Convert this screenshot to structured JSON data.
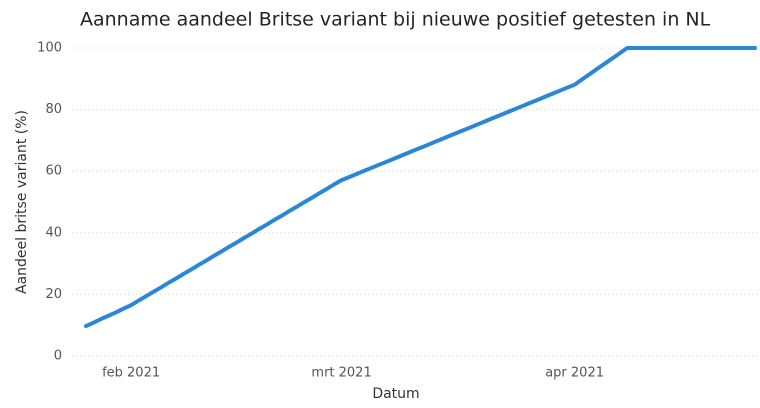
{
  "chart_data": {
    "type": "line",
    "title": "Aanname aandeel Britse variant bij nieuwe positief getesten in NL",
    "x_label": "Datum",
    "y_label": "Aandeel britse variant (%)",
    "series": [
      {
        "name": "Aandeel britse variant",
        "color": "#2a87d8",
        "values": [
          9.7,
          10.8,
          12.0,
          13.1,
          14.2,
          15.4,
          16.5,
          18.0,
          19.4,
          20.9,
          22.3,
          23.8,
          25.2,
          26.7,
          28.1,
          29.6,
          31.0,
          32.5,
          33.9,
          35.4,
          36.8,
          38.3,
          39.7,
          41.2,
          42.6,
          44.1,
          45.5,
          47.0,
          48.4,
          49.9,
          51.3,
          52.8,
          54.2,
          55.7,
          57.1,
          58.1,
          59.1,
          60.1,
          61.1,
          62.1,
          63.1,
          64.1,
          65.1,
          66.1,
          67.1,
          68.1,
          69.1,
          70.1,
          71.1,
          72.1,
          73.1,
          74.1,
          75.1,
          76.1,
          77.1,
          78.1,
          79.1,
          80.1,
          81.1,
          82.1,
          83.1,
          84.1,
          85.1,
          86.1,
          87.1,
          88.1,
          89.8,
          91.5,
          93.2,
          94.9,
          96.6,
          98.3,
          100,
          100,
          100,
          100,
          100,
          100,
          100,
          100,
          100,
          100,
          100,
          100,
          100,
          100,
          100,
          100,
          100,
          100
        ]
      }
    ],
    "xlim": [
      0,
      89
    ],
    "xticks": [
      {
        "value": 6,
        "label": "feb 2021"
      },
      {
        "value": 34,
        "label": "mrt 2021"
      },
      {
        "value": 65,
        "label": "apr 2021"
      }
    ],
    "ylim": [
      0,
      100
    ],
    "yticks": [
      0,
      20,
      40,
      60,
      80,
      100
    ],
    "grid": true
  }
}
